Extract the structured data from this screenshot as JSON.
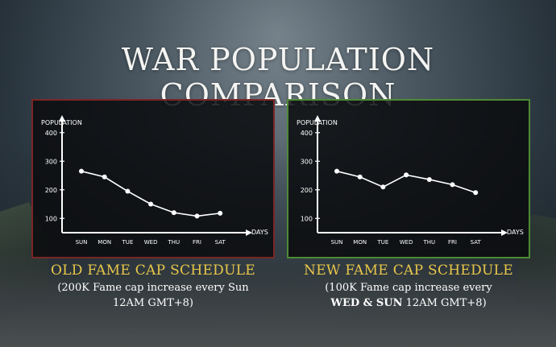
{
  "title": "WAR POPULATION COMPARISON",
  "colors": {
    "old_border": "#7a2626",
    "new_border": "#4e8a34",
    "caption_title": "#e9c74a",
    "line": "#ffffff"
  },
  "old": {
    "caption_title": "OLD FAME CAP SCHEDULE",
    "caption_line1": "(200K Fame cap increase every Sun",
    "caption_line2": "12AM GMT+8)"
  },
  "new": {
    "caption_title": "NEW FAME CAP SCHEDULE",
    "caption_line1": "(100K Fame cap increase every",
    "caption_line2_bold": "WED & SUN",
    "caption_line2_rest": " 12AM GMT+8)"
  },
  "chart_data": [
    {
      "type": "line",
      "ylabel": "POPULATION",
      "xlabel": "DAYS",
      "categories": [
        "SUN",
        "MON",
        "TUE",
        "WED",
        "THU",
        "FRI",
        "SAT"
      ],
      "yticks": [
        100,
        200,
        300,
        400
      ],
      "ylim": [
        50,
        450
      ],
      "series": [
        {
          "values": [
            265,
            245,
            195,
            150,
            120,
            108,
            118
          ]
        }
      ],
      "grid": false
    },
    {
      "type": "line",
      "ylabel": "POPULATION",
      "xlabel": "DAYS",
      "categories": [
        "SUN",
        "MON",
        "TUE",
        "WED",
        "THU",
        "FRI",
        "SAT"
      ],
      "yticks": [
        100,
        200,
        300,
        400
      ],
      "ylim": [
        50,
        450
      ],
      "series": [
        {
          "values": [
            265,
            245,
            210,
            252,
            236,
            218,
            190
          ]
        }
      ],
      "grid": false
    }
  ]
}
